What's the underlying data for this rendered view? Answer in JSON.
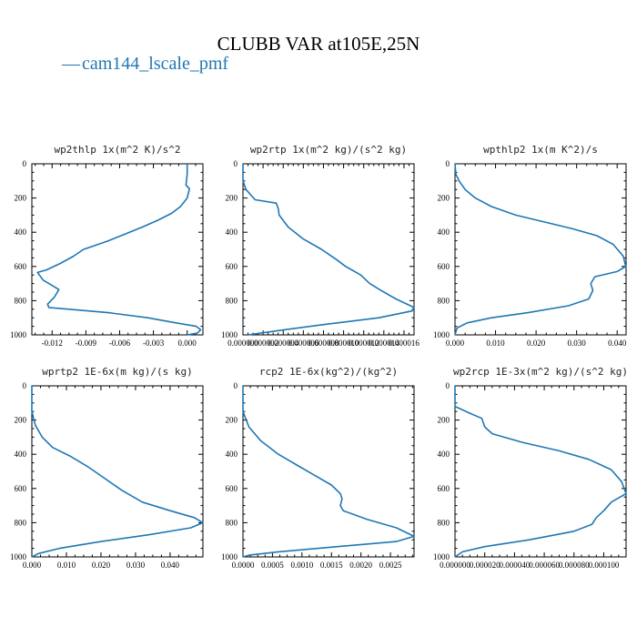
{
  "figure": {
    "title": "CLUBB VAR at105E,25N",
    "legend": [
      {
        "marker": "—",
        "label": "cam144_lscale_pmf",
        "color": "#1f77b4"
      }
    ]
  },
  "chart_data": [
    {
      "type": "line",
      "title": "wp2thlp   1x(m^2 K)/s^2",
      "ylim": [
        1000,
        0
      ],
      "yticks": [
        "0",
        "200",
        "400",
        "600",
        "800",
        "1000"
      ],
      "xlim": [
        -0.0138,
        0.0014
      ],
      "xticks": [
        -0.012,
        -0.009,
        -0.006,
        -0.003,
        0.0
      ],
      "xtick_labels": [
        "-0.012",
        "-0.009",
        "-0.006",
        "-0.003",
        "0.000"
      ],
      "series": [
        {
          "name": "cam144_lscale_pmf",
          "color": "#1f77b4",
          "x": [
            0.0,
            0.0,
            -0.0001,
            0.0002,
            0.0,
            -0.0006,
            -0.0014,
            -0.0026,
            -0.004,
            -0.0055,
            -0.007,
            -0.0083,
            -0.0092,
            -0.0101,
            -0.0112,
            -0.0125,
            -0.0133,
            -0.0128,
            -0.0119,
            -0.0114,
            -0.0118,
            -0.0124,
            -0.0123,
            -0.0105,
            -0.007,
            -0.0035,
            -0.001,
            0.0008,
            0.0012,
            0.0009,
            0.0
          ],
          "y": [
            0,
            60,
            125,
            145,
            200,
            250,
            290,
            330,
            370,
            410,
            450,
            480,
            500,
            540,
            580,
            620,
            635,
            680,
            715,
            735,
            780,
            820,
            840,
            850,
            870,
            900,
            930,
            950,
            970,
            990,
            1000
          ]
        }
      ]
    },
    {
      "type": "line",
      "title": "wp2rtp   1x(m^2 kg)/(s^2 kg)",
      "ylim": [
        1000,
        0
      ],
      "yticks": [
        "0",
        "200",
        "400",
        "600",
        "800",
        "1000"
      ],
      "xlim": [
        0,
        1.7e-05
      ],
      "xticks": [
        0.0,
        2e-06,
        4e-06,
        6e-06,
        8e-06,
        1e-05,
        1.2e-05,
        1.4e-05,
        1.6e-05
      ],
      "xtick_labels": [
        "0.000000",
        "0.000002",
        "0.000004",
        "0.000006",
        "0.000008",
        "0.000010",
        "0.000012",
        "0.000014",
        "0.000016"
      ],
      "series": [
        {
          "name": "cam144_lscale_pmf",
          "color": "#1f77b4",
          "x": [
            0.0,
            0.0,
            3e-07,
            1.2e-06,
            3.3e-06,
            3.5e-06,
            3.6e-06,
            4.5e-06,
            6e-06,
            7.8e-06,
            9.3e-06,
            1.02e-05,
            1.17e-05,
            1.26e-05,
            1.37e-05,
            1.52e-05,
            1.7e-05,
            1.68e-05,
            1.35e-05,
            8e-06,
            3.5e-06,
            5e-07
          ],
          "y": [
            0,
            100,
            150,
            210,
            230,
            260,
            300,
            370,
            440,
            500,
            560,
            600,
            650,
            700,
            740,
            790,
            840,
            860,
            900,
            940,
            975,
            1000
          ]
        }
      ]
    },
    {
      "type": "line",
      "title": "wpthlp2   1x(m K^2)/s",
      "ylim": [
        1000,
        0
      ],
      "yticks": [
        "0",
        "200",
        "400",
        "600",
        "800",
        "1000"
      ],
      "xlim": [
        0,
        0.0422
      ],
      "xticks": [
        0.0,
        0.01,
        0.02,
        0.03,
        0.04
      ],
      "xtick_labels": [
        "0.000",
        "0.010",
        "0.020",
        "0.030",
        "0.040"
      ],
      "series": [
        {
          "name": "cam144_lscale_pmf",
          "color": "#1f77b4",
          "x": [
            0.0,
            0.0002,
            0.001,
            0.0025,
            0.005,
            0.009,
            0.015,
            0.022,
            0.029,
            0.035,
            0.039,
            0.0415,
            0.0421,
            0.04,
            0.0345,
            0.0335,
            0.034,
            0.033,
            0.028,
            0.018,
            0.009,
            0.003,
            0.0005,
            0.0
          ],
          "y": [
            0,
            60,
            100,
            150,
            200,
            250,
            300,
            340,
            380,
            420,
            470,
            540,
            600,
            630,
            660,
            700,
            740,
            790,
            830,
            870,
            900,
            930,
            960,
            1000
          ]
        }
      ]
    },
    {
      "type": "line",
      "title": "wprtp2   1E-6x(m kg)/(s kg)",
      "ylim": [
        1000,
        0
      ],
      "yticks": [
        "0",
        "200",
        "400",
        "600",
        "800",
        "1000"
      ],
      "xlim": [
        0,
        0.0495
      ],
      "xticks": [
        0.0,
        0.01,
        0.02,
        0.03,
        0.04
      ],
      "xtick_labels": [
        "0.000",
        "0.010",
        "0.020",
        "0.030",
        "0.040"
      ],
      "series": [
        {
          "name": "cam144_lscale_pmf",
          "color": "#1f77b4",
          "x": [
            0.0,
            0.0,
            0.001,
            0.003,
            0.006,
            0.011,
            0.016,
            0.021,
            0.026,
            0.032,
            0.04,
            0.047,
            0.0495,
            0.046,
            0.034,
            0.02,
            0.008,
            0.002,
            0.0
          ],
          "y": [
            0,
            150,
            230,
            300,
            360,
            410,
            470,
            540,
            610,
            680,
            730,
            770,
            800,
            830,
            870,
            910,
            950,
            980,
            1000
          ]
        }
      ]
    },
    {
      "type": "line",
      "title": "rcp2   1E-6x(kg^2)/(kg^2)",
      "ylim": [
        1000,
        0
      ],
      "yticks": [
        "0",
        "200",
        "400",
        "600",
        "800",
        "1000"
      ],
      "xlim": [
        0,
        0.0029
      ],
      "xticks": [
        0.0,
        0.0005,
        0.001,
        0.0015,
        0.002,
        0.0025
      ],
      "xtick_labels": [
        "0.0000",
        "0.0005",
        "0.0010",
        "0.0015",
        "0.0020",
        "0.0025"
      ],
      "series": [
        {
          "name": "cam144_lscale_pmf",
          "color": "#1f77b4",
          "x": [
            0.0,
            0.0,
            0.0001,
            0.0003,
            0.0006,
            0.0009,
            0.0012,
            0.0015,
            0.00165,
            0.00168,
            0.00165,
            0.0017,
            0.0021,
            0.0026,
            0.0029,
            0.0026,
            0.0016,
            0.0006,
            0.0001,
            0.0
          ],
          "y": [
            0,
            150,
            240,
            320,
            400,
            460,
            520,
            580,
            630,
            660,
            700,
            730,
            780,
            830,
            880,
            910,
            940,
            970,
            990,
            1000
          ]
        }
      ]
    },
    {
      "type": "line",
      "title": "wp2rcp   1E-3x(m^2 kg)/(s^2 kg)",
      "ylim": [
        1000,
        0
      ],
      "yticks": [
        "0",
        "200",
        "400",
        "600",
        "800",
        "1000"
      ],
      "xlim": [
        0,
        0.000115
      ],
      "xticks": [
        0.0,
        2e-05,
        4e-05,
        6e-05,
        8e-05,
        0.0001
      ],
      "xtick_labels": [
        "0.000000",
        "0.000020",
        "0.000040",
        "0.000060",
        "0.000080",
        "0.000100"
      ],
      "series": [
        {
          "name": "cam144_lscale_pmf",
          "color": "#1f77b4",
          "x": [
            0.0,
            0.0,
            1e-05,
            1.8e-05,
            2e-05,
            2.5e-05,
            4.5e-05,
            7e-05,
            9e-05,
            0.000105,
            0.000112,
            0.000115,
            0.000105,
            0.0001,
            9.5e-05,
            9.2e-05,
            8e-05,
            5e-05,
            2e-05,
            5e-06,
            0.0
          ],
          "y": [
            0,
            120,
            160,
            190,
            240,
            280,
            330,
            380,
            430,
            490,
            560,
            630,
            680,
            730,
            770,
            810,
            850,
            900,
            940,
            970,
            1000
          ]
        }
      ]
    }
  ]
}
